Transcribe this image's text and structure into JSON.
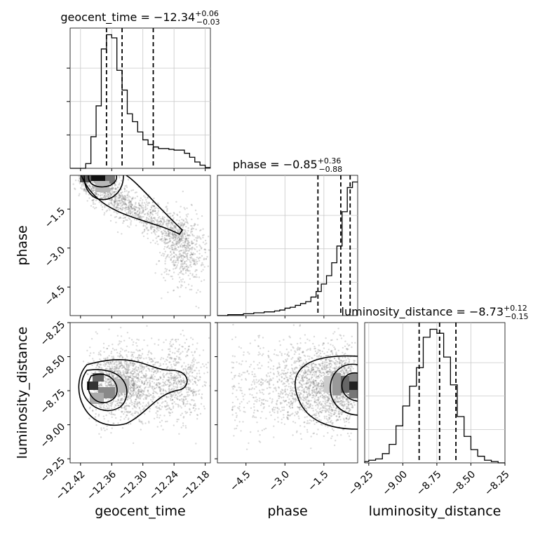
{
  "chart_data": {
    "type": "corner",
    "parameters": [
      "geocent_time",
      "phase",
      "luminosity_distance"
    ],
    "axis_labels": {
      "geocent_time": "geocent_time",
      "phase": "phase",
      "luminosity_distance": "luminosity_distance"
    },
    "ranges": {
      "geocent_time": [
        -12.44,
        -12.17
      ],
      "phase": [
        -5.6,
        -0.2
      ],
      "luminosity_distance": [
        -9.28,
        -8.25
      ]
    },
    "ticks": {
      "geocent_time": [
        -12.42,
        -12.36,
        -12.3,
        -12.24,
        -12.18
      ],
      "phase": [
        -4.5,
        -3.0,
        -1.5
      ],
      "luminosity_distance": [
        -9.25,
        -9.0,
        -8.75,
        -8.5,
        -8.25
      ]
    },
    "tick_labels": {
      "geocent_time": [
        "−12.42",
        "−12.36",
        "−12.30",
        "−12.24",
        "−12.18"
      ],
      "phase": [
        "−4.5",
        "−3.0",
        "−1.5"
      ],
      "luminosity_distance": [
        "−9.25",
        "−9.00",
        "−8.75",
        "−8.50",
        "−8.25"
      ]
    },
    "titles": [
      {
        "param": "geocent_time",
        "main": "geocent_time = −12.34",
        "plus": "+0.06",
        "minus": "−0.03"
      },
      {
        "param": "phase",
        "main": "phase = −0.85",
        "plus": "+0.36",
        "minus": "−0.88"
      },
      {
        "param": "luminosity_distance",
        "main": "luminosity_distance = −8.73",
        "plus": "+0.12",
        "minus": "−0.15"
      }
    ],
    "quantiles": {
      "geocent_time": [
        -12.37,
        -12.34,
        -12.28
      ],
      "phase": [
        -1.73,
        -0.85,
        -0.49
      ],
      "luminosity_distance": [
        -8.88,
        -8.73,
        -8.61
      ]
    },
    "histograms": {
      "geocent_time": {
        "edges": [
          -12.44,
          -12.43,
          -12.42,
          -12.41,
          -12.4,
          -12.39,
          -12.38,
          -12.37,
          -12.36,
          -12.35,
          -12.34,
          -12.33,
          -12.32,
          -12.31,
          -12.3,
          -12.29,
          -12.28,
          -12.27,
          -12.26,
          -12.25,
          -12.24,
          -12.23,
          -12.22,
          -12.21,
          -12.2,
          -12.19,
          -12.18,
          -12.17
        ],
        "counts": [
          0,
          0,
          0,
          6,
          40,
          79,
          151,
          169,
          165,
          124,
          99,
          69,
          59,
          46,
          36,
          30,
          27,
          25,
          25,
          24,
          23,
          23,
          19,
          14,
          8,
          4,
          1
        ]
      },
      "phase": {
        "edges": [
          -5.6,
          -5.4,
          -5.2,
          -5.0,
          -4.8,
          -4.6,
          -4.4,
          -4.2,
          -4.0,
          -3.8,
          -3.6,
          -3.4,
          -3.2,
          -3.0,
          -2.8,
          -2.6,
          -2.4,
          -2.2,
          -2.0,
          -1.8,
          -1.6,
          -1.4,
          -1.2,
          -1.0,
          -0.8,
          -0.6,
          -0.4,
          -0.2
        ],
        "counts": [
          0,
          0,
          1,
          1,
          1,
          2,
          2,
          3,
          3,
          4,
          4,
          5,
          6,
          8,
          9,
          11,
          13,
          15,
          20,
          26,
          34,
          43,
          57,
          75,
          112,
          138,
          144
        ]
      },
      "luminosity_distance": {
        "edges": [
          -9.28,
          -9.25,
          -9.2,
          -9.15,
          -9.1,
          -9.05,
          -9.0,
          -8.95,
          -8.9,
          -8.85,
          -8.8,
          -8.75,
          -8.7,
          -8.65,
          -8.6,
          -8.55,
          -8.5,
          -8.45,
          -8.4,
          -8.35,
          -8.3,
          -8.25
        ],
        "counts": [
          1,
          2,
          3,
          7,
          14,
          28,
          43,
          58,
          72,
          95,
          101,
          98,
          80,
          59,
          35,
          20,
          10,
          5,
          2,
          1,
          0
        ]
      }
    },
    "scatter_2d": [
      {
        "x": "geocent_time",
        "y": "phase",
        "peak": [
          -12.36,
          -0.3
        ],
        "levels": 3
      },
      {
        "x": "geocent_time",
        "y": "luminosity_distance",
        "peak": [
          -12.36,
          -8.72
        ],
        "levels": 3
      },
      {
        "x": "phase",
        "y": "luminosity_distance",
        "peak": [
          -0.3,
          -8.72
        ],
        "levels": 3
      }
    ],
    "grid": true,
    "legend": "none"
  }
}
